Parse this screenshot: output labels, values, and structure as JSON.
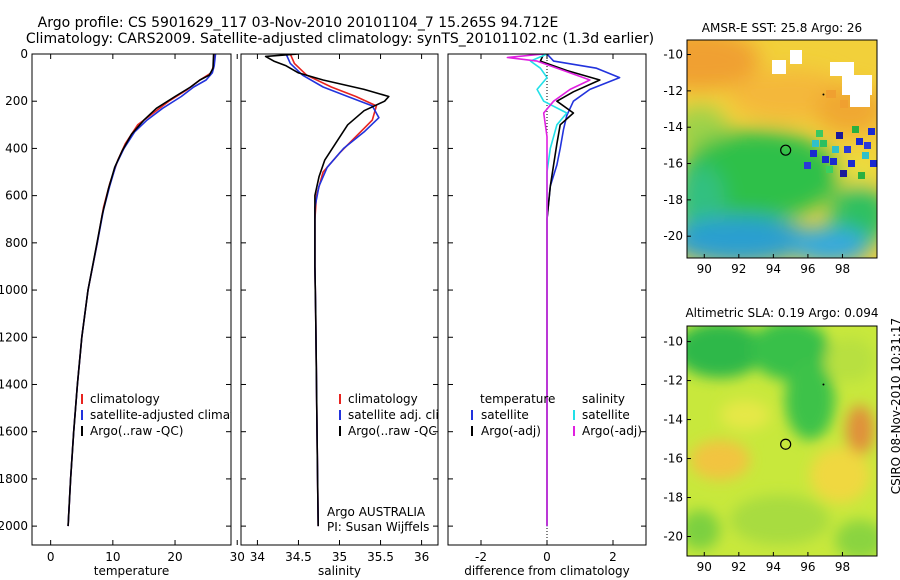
{
  "header": {
    "line1": "Argo profile: CS 5901629_117 03-Nov-2010 20101104_7 15.265S 94.712E",
    "line2": "Climatology: CARS2009. Satellite-adjusted climatology: synTS_20101102.nc (1.3d earlier)"
  },
  "side_stamp": "CSIRO 08-Nov-2010 10:31:17",
  "credit": {
    "line1": "Argo AUSTRALIA",
    "line2": "PI: Susan Wijffels"
  },
  "colors": {
    "climatology": "#e8231f",
    "satellite": "#2233dd",
    "argo": "#000000",
    "satellite_diff": "#22e0e8",
    "argo_diff": "#e020e0"
  },
  "chart_data": [
    {
      "type": "line",
      "id": "temperature",
      "xlabel": "temperature",
      "ylabel": "",
      "xlim": [
        -3,
        29
      ],
      "ylim": [
        2080,
        0
      ],
      "xticks": [
        0,
        10,
        20,
        30
      ],
      "yticks": [
        0,
        200,
        400,
        600,
        800,
        1000,
        1200,
        1400,
        1600,
        1800,
        2000
      ],
      "legend": {
        "position": "lower-right",
        "entries": [
          "climatology",
          "satellite-adjusted climatology",
          "Argo(..raw -QC)"
        ]
      },
      "series": [
        {
          "name": "climatology",
          "color": "#e8231f",
          "points": [
            [
              26.3,
              0
            ],
            [
              26.2,
              50
            ],
            [
              25.8,
              80
            ],
            [
              24,
              110
            ],
            [
              22,
              150
            ],
            [
              19,
              200
            ],
            [
              16,
              260
            ],
            [
              14,
              300
            ],
            [
              12,
              380
            ],
            [
              10.8,
              450
            ],
            [
              9.5,
              550
            ],
            [
              8.5,
              650
            ],
            [
              7.5,
              800
            ],
            [
              6,
              1000
            ],
            [
              5,
              1200
            ],
            [
              4.3,
              1400
            ],
            [
              3.7,
              1600
            ],
            [
              3.2,
              1800
            ],
            [
              2.8,
              2000
            ]
          ]
        },
        {
          "name": "satellite-adjusted climatology",
          "color": "#2233dd",
          "points": [
            [
              26.5,
              0
            ],
            [
              26.3,
              50
            ],
            [
              26,
              80
            ],
            [
              25,
              110
            ],
            [
              23,
              140
            ],
            [
              21,
              180
            ],
            [
              18,
              230
            ],
            [
              15.5,
              280
            ],
            [
              13.5,
              330
            ],
            [
              11.8,
              400
            ],
            [
              10.5,
              470
            ],
            [
              9.5,
              560
            ],
            [
              8.5,
              660
            ],
            [
              7.5,
              800
            ],
            [
              6,
              1000
            ],
            [
              5,
              1200
            ],
            [
              4.3,
              1400
            ],
            [
              3.7,
              1600
            ],
            [
              3.2,
              1800
            ],
            [
              2.8,
              2000
            ]
          ]
        },
        {
          "name": "Argo(..raw -QC)",
          "color": "#000000",
          "points": [
            [
              26.2,
              0
            ],
            [
              26.1,
              60
            ],
            [
              25.5,
              90
            ],
            [
              24,
              110
            ],
            [
              22.5,
              140
            ],
            [
              20,
              180
            ],
            [
              17,
              230
            ],
            [
              15,
              280
            ],
            [
              13,
              340
            ],
            [
              11.5,
              410
            ],
            [
              10.3,
              480
            ],
            [
              9.3,
              570
            ],
            [
              8.3,
              680
            ],
            [
              7.3,
              820
            ],
            [
              6,
              1000
            ],
            [
              5,
              1200
            ],
            [
              4.3,
              1400
            ],
            [
              3.7,
              1600
            ],
            [
              3.2,
              1800
            ],
            [
              2.8,
              2000
            ]
          ]
        }
      ]
    },
    {
      "type": "line",
      "id": "salinity",
      "xlabel": "salinity",
      "ylabel": "",
      "xlim": [
        33.8,
        36.2
      ],
      "ylim": [
        2080,
        0
      ],
      "xticks": [
        34,
        34.5,
        35,
        35.5,
        36
      ],
      "xticklabels": [
        "34",
        "34.5",
        "35",
        "35.5",
        "36"
      ],
      "legend": {
        "position": "lower-right",
        "entries": [
          "climatology",
          "satellite adj. clim.",
          "Argo(..raw -QC)"
        ]
      },
      "series": [
        {
          "name": "climatology",
          "color": "#e8231f",
          "points": [
            [
              34.4,
              0
            ],
            [
              34.45,
              40
            ],
            [
              34.6,
              90
            ],
            [
              34.9,
              140
            ],
            [
              35.2,
              180
            ],
            [
              35.45,
              220
            ],
            [
              35.4,
              280
            ],
            [
              35.2,
              350
            ],
            [
              35,
              420
            ],
            [
              34.8,
              500
            ],
            [
              34.72,
              600
            ],
            [
              34.7,
              700
            ],
            [
              34.7,
              900
            ],
            [
              34.71,
              1100
            ],
            [
              34.72,
              1400
            ],
            [
              34.73,
              1700
            ],
            [
              34.74,
              2000
            ]
          ]
        },
        {
          "name": "satellite adj. clim.",
          "color": "#2233dd",
          "points": [
            [
              34.35,
              0
            ],
            [
              34.4,
              40
            ],
            [
              34.55,
              90
            ],
            [
              34.8,
              140
            ],
            [
              35.1,
              180
            ],
            [
              35.4,
              220
            ],
            [
              35.48,
              270
            ],
            [
              35.3,
              330
            ],
            [
              35.05,
              400
            ],
            [
              34.85,
              480
            ],
            [
              34.75,
              560
            ],
            [
              34.7,
              650
            ],
            [
              34.7,
              900
            ],
            [
              34.71,
              1100
            ],
            [
              34.72,
              1400
            ],
            [
              34.73,
              1700
            ],
            [
              34.74,
              2000
            ]
          ]
        },
        {
          "name": "Argo(..raw -QC)",
          "color": "#000000",
          "points": [
            [
              34.5,
              0
            ],
            [
              34.1,
              10
            ],
            [
              34.2,
              30
            ],
            [
              34.35,
              50
            ],
            [
              34.5,
              80
            ],
            [
              34.8,
              110
            ],
            [
              35.3,
              150
            ],
            [
              35.6,
              180
            ],
            [
              35.55,
              200
            ],
            [
              35.3,
              240
            ],
            [
              35.1,
              300
            ],
            [
              34.95,
              380
            ],
            [
              34.82,
              450
            ],
            [
              34.75,
              520
            ],
            [
              34.7,
              600
            ],
            [
              34.7,
              900
            ],
            [
              34.71,
              1100
            ],
            [
              34.72,
              1400
            ],
            [
              34.73,
              1700
            ],
            [
              34.74,
              2000
            ]
          ]
        }
      ]
    },
    {
      "type": "line",
      "id": "difference",
      "xlabel": "difference from climatology",
      "ylabel": "",
      "xlim": [
        -3,
        3
      ],
      "ylim": [
        2080,
        0
      ],
      "xticks": [
        -2,
        0,
        2
      ],
      "legend": {
        "position": "lower-center",
        "group_titles": [
          "temperature",
          "salinity"
        ],
        "entries": [
          "satellite",
          "Argo(-adj)",
          "satellite",
          "Argo(-adj)"
        ]
      },
      "series": [
        {
          "name": "temperature satellite",
          "color": "#2233dd",
          "points": [
            [
              0,
              0
            ],
            [
              0.2,
              30
            ],
            [
              1.5,
              60
            ],
            [
              2.2,
              100
            ],
            [
              1.3,
              150
            ],
            [
              0.8,
              200
            ],
            [
              0.6,
              260
            ],
            [
              0.5,
              320
            ],
            [
              0.4,
              400
            ],
            [
              0.3,
              470
            ],
            [
              0.1,
              560
            ],
            [
              0,
              700
            ],
            [
              0,
              2000
            ]
          ]
        },
        {
          "name": "temperature Argo(-adj)",
          "color": "#000000",
          "points": [
            [
              -0.1,
              0
            ],
            [
              -0.2,
              30
            ],
            [
              0.6,
              70
            ],
            [
              1.6,
              110
            ],
            [
              0.8,
              160
            ],
            [
              0.3,
              200
            ],
            [
              0.8,
              250
            ],
            [
              0.4,
              300
            ],
            [
              0.3,
              380
            ],
            [
              0.2,
              470
            ],
            [
              0.1,
              560
            ],
            [
              0,
              700
            ],
            [
              0,
              2000
            ]
          ]
        },
        {
          "name": "salinity satellite",
          "color": "#22e0e8",
          "points": [
            [
              0,
              0
            ],
            [
              -0.5,
              30
            ],
            [
              -0.2,
              60
            ],
            [
              0,
              100
            ],
            [
              -0.3,
              150
            ],
            [
              -0.1,
              200
            ],
            [
              0.6,
              250
            ],
            [
              0.3,
              300
            ],
            [
              0.1,
              400
            ],
            [
              0,
              500
            ],
            [
              0,
              2000
            ]
          ]
        },
        {
          "name": "salinity Argo(-adj)",
          "color": "#e020e0",
          "points": [
            [
              -0.1,
              0
            ],
            [
              -1.2,
              15
            ],
            [
              -0.3,
              30
            ],
            [
              0.5,
              70
            ],
            [
              1.3,
              110
            ],
            [
              0.7,
              150
            ],
            [
              0.2,
              200
            ],
            [
              -0.1,
              250
            ],
            [
              0,
              350
            ],
            [
              0,
              500
            ],
            [
              0,
              2000
            ]
          ]
        }
      ]
    },
    {
      "type": "heatmap",
      "id": "sst-map",
      "title": "AMSR-E SST: 25.8 Argo: 26",
      "xlim": [
        89,
        100
      ],
      "ylim": [
        -21.2,
        -9.2
      ],
      "xticks": [
        90,
        92,
        94,
        96,
        98
      ],
      "yticks": [
        -10,
        -12,
        -14,
        -16,
        -18,
        -20
      ],
      "marker": {
        "lon": 94.712,
        "lat": -15.265
      },
      "dot": {
        "lon": 96.9,
        "lat": -12.2
      }
    },
    {
      "type": "heatmap",
      "id": "sla-map",
      "title": "Altimetric SLA: 0.19 Argo: 0.094",
      "xlim": [
        89,
        100
      ],
      "ylim": [
        -21,
        -9.2
      ],
      "xticks": [
        90,
        92,
        94,
        96,
        98
      ],
      "yticks": [
        -10,
        -12,
        -14,
        -16,
        -18,
        -20
      ],
      "marker": {
        "lon": 94.712,
        "lat": -15.265
      },
      "dot": {
        "lon": 96.9,
        "lat": -12.2
      }
    }
  ]
}
